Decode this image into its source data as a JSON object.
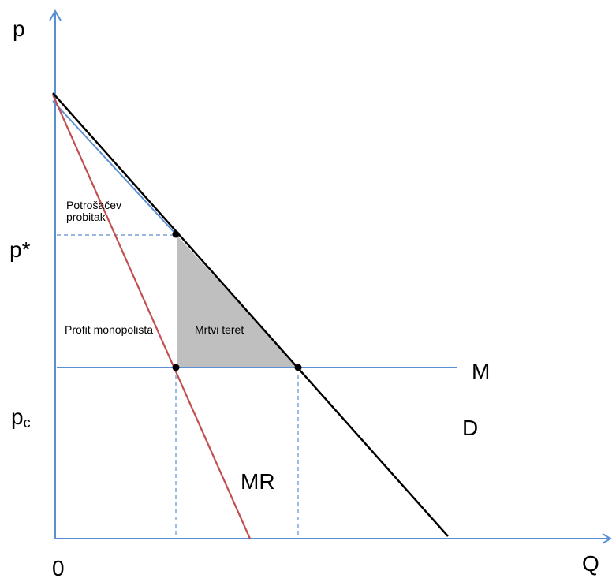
{
  "axes": {
    "y_label": "p",
    "x_label": "Q",
    "origin_label": "0"
  },
  "price_labels": {
    "p_star": "p*",
    "p_c_base": "p",
    "p_c_sub": "c"
  },
  "curve_labels": {
    "marginal_cost": "M",
    "demand": "D",
    "marginal_revenue": "MR"
  },
  "areas": {
    "consumer_surplus_line1": "Potrošačev",
    "consumer_surplus_line2": "probitak",
    "monopoly_profit": "Profit monopolista",
    "deadweight_loss": "Mrtvi teret"
  },
  "colors": {
    "axis": "#5b8fd4",
    "demand": "#000000",
    "marginal_revenue": "#c0504d",
    "marginal_cost": "#5b8fd4",
    "deadweight_fill": "#bfbfbf",
    "guide": "#5b8fd4"
  }
}
